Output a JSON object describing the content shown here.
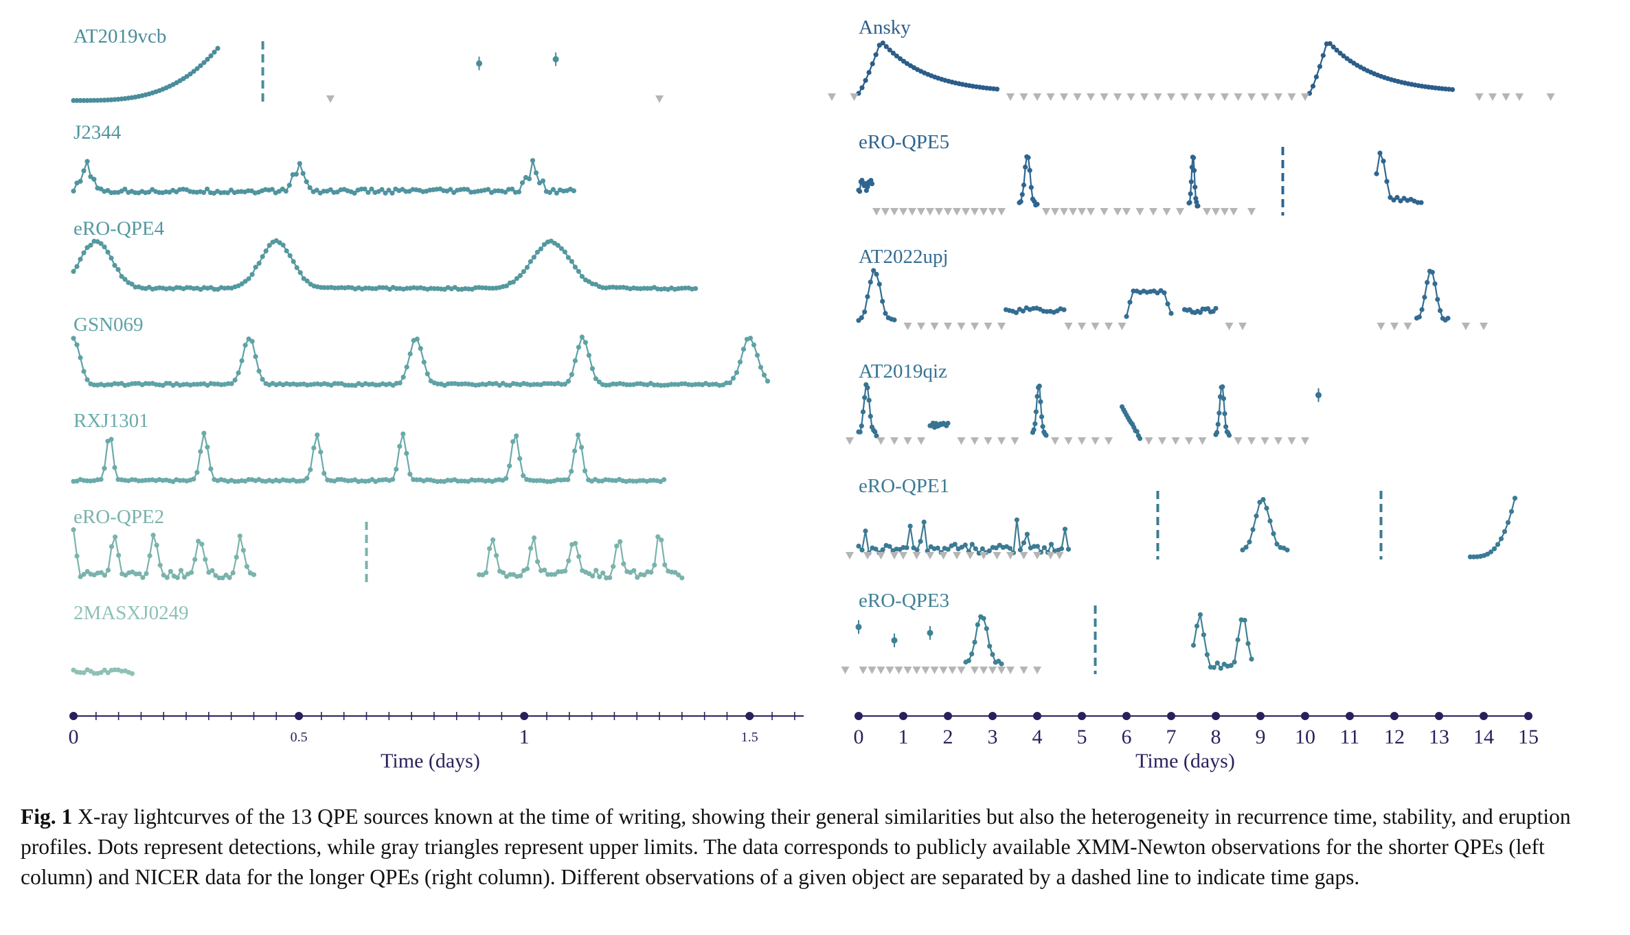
{
  "chart_data": [
    {
      "type": "line",
      "panel": "left",
      "xlabel": "Time (days)",
      "xlim": [
        0,
        1.62
      ],
      "major_ticks": [
        0,
        0.5,
        1,
        1.5
      ],
      "tick_labels": [
        "0",
        "0.5",
        "1",
        "1.5"
      ],
      "minor_tick_step": 0.05,
      "series": [
        {
          "name": "AT2019vcb",
          "color": "#4a8d9b",
          "segments": [
            {
              "start": 0.0,
              "end": 0.32,
              "model": "rise"
            }
          ],
          "isolated": [
            0.9,
            1.07
          ],
          "gaps": [
            0.42
          ],
          "upper_limits": [
            0.57,
            1.3
          ]
        },
        {
          "name": "J2344",
          "color": "#4f949f",
          "segments": [
            {
              "start": 0.0,
              "end": 1.11,
              "model": "noisy",
              "flares": [
                0.03,
                0.5,
                1.02
              ]
            }
          ],
          "gaps": [],
          "upper_limits": []
        },
        {
          "name": "eRO-QPE4",
          "color": "#54999f",
          "segments": [
            {
              "start": 0.0,
              "end": 1.38,
              "model": "peaks",
              "peaks": [
                0.05,
                0.45,
                1.06
              ],
              "widths": [
                0.05,
                0.05,
                0.06
              ]
            }
          ],
          "gaps": [],
          "upper_limits": []
        },
        {
          "name": "GSN069",
          "color": "#5ea2a6",
          "segments": [
            {
              "start": 0.0,
              "end": 1.54,
              "model": "peaks",
              "peaks": [
                0.0,
                0.39,
                0.76,
                1.13,
                1.5
              ],
              "widths": [
                0.02,
                0.02,
                0.02,
                0.02,
                0.025
              ]
            }
          ],
          "gaps": [],
          "upper_limits": []
        },
        {
          "name": "RXJ1301",
          "color": "#6aaaaa",
          "segments": [
            {
              "start": 0.0,
              "end": 1.31,
              "model": "peaks",
              "peaks": [
                0.08,
                0.29,
                0.54,
                0.73,
                0.98,
                1.12
              ],
              "widths": [
                0.01,
                0.012,
                0.012,
                0.012,
                0.012,
                0.012
              ]
            }
          ],
          "gaps": [],
          "upper_limits": []
        },
        {
          "name": "eRO-QPE2",
          "color": "#7ab3ac",
          "segments": [
            {
              "start": 0.0,
              "end": 0.4,
              "model": "spikes",
              "peaks": [
                0.0,
                0.09,
                0.18,
                0.28,
                0.37
              ]
            },
            {
              "start": 0.9,
              "end": 1.35,
              "model": "spikes",
              "peaks": [
                0.93,
                1.02,
                1.11,
                1.21,
                1.3
              ]
            }
          ],
          "gaps": [
            0.65
          ],
          "upper_limits": []
        },
        {
          "name": "2MASXJ0249",
          "color": "#8ec0b6",
          "segments": [
            {
              "start": 0.0,
              "end": 0.13,
              "model": "noisy"
            }
          ],
          "gaps": [],
          "upper_limits": []
        }
      ]
    },
    {
      "type": "line",
      "panel": "right",
      "xlabel": "Time (days)",
      "xlim": [
        0,
        15
      ],
      "major_ticks": [
        0,
        1,
        2,
        3,
        4,
        5,
        6,
        7,
        8,
        9,
        10,
        11,
        12,
        13,
        14,
        15
      ],
      "tick_labels": [
        "0",
        "1",
        "2",
        "3",
        "4",
        "5",
        "6",
        "7",
        "8",
        "9",
        "10",
        "11",
        "12",
        "13",
        "14",
        "15"
      ],
      "series": [
        {
          "name": "Ansky",
          "color": "#2b5d8a",
          "segments": [
            {
              "start": 0.0,
              "end": 3.1,
              "model": "fred",
              "peak": 0.5
            },
            {
              "start": 10.1,
              "end": 13.3,
              "model": "fred",
              "peak": 10.5
            }
          ],
          "upper_limits": [
            -0.6,
            -0.1,
            3.4,
            3.7,
            4.0,
            4.3,
            4.6,
            4.9,
            5.2,
            5.5,
            5.8,
            6.1,
            6.4,
            6.7,
            7.0,
            7.3,
            7.6,
            7.9,
            8.2,
            8.5,
            8.8,
            9.1,
            9.4,
            9.7,
            10.0,
            13.9,
            14.2,
            14.5,
            14.8,
            15.5
          ],
          "gaps": []
        },
        {
          "name": "eRO-QPE5",
          "color": "#2e6590",
          "segments": [
            {
              "start": 0.0,
              "end": 0.3,
              "model": "sparse"
            },
            {
              "start": 3.6,
              "end": 4.0,
              "model": "flare"
            },
            {
              "start": 7.4,
              "end": 7.6,
              "model": "flare"
            },
            {
              "start": 11.6,
              "end": 12.6,
              "model": "fast-rise"
            }
          ],
          "upper_limits": [
            0.4,
            0.6,
            0.8,
            1.0,
            1.2,
            1.4,
            1.6,
            1.8,
            2.0,
            2.2,
            2.4,
            2.6,
            2.8,
            3.0,
            3.2,
            4.2,
            4.4,
            4.6,
            4.8,
            5.0,
            5.2,
            5.5,
            5.8,
            6.0,
            6.3,
            6.6,
            6.9,
            7.2,
            7.8,
            8.0,
            8.2,
            8.4,
            8.8
          ],
          "gaps": [
            9.5
          ]
        },
        {
          "name": "AT2022upj",
          "color": "#336c92",
          "segments": [
            {
              "start": 0.0,
              "end": 0.8,
              "model": "flare"
            },
            {
              "start": 3.3,
              "end": 4.6,
              "model": "flat"
            },
            {
              "start": 6.0,
              "end": 7.0,
              "model": "plateau"
            },
            {
              "start": 7.3,
              "end": 8.0,
              "model": "flat"
            },
            {
              "start": 12.5,
              "end": 13.2,
              "model": "flare"
            }
          ],
          "upper_limits": [
            1.1,
            1.4,
            1.7,
            2.0,
            2.3,
            2.6,
            2.9,
            3.2,
            4.7,
            5.0,
            5.3,
            5.6,
            5.9,
            8.3,
            8.6,
            11.7,
            12.0,
            12.3,
            13.6,
            14.0
          ],
          "gaps": []
        },
        {
          "name": "AT2019qiz",
          "color": "#377393",
          "segments": [
            {
              "start": 0.0,
              "end": 0.4,
              "model": "flare"
            },
            {
              "start": 1.6,
              "end": 2.0,
              "model": "flat"
            },
            {
              "start": 3.9,
              "end": 4.2,
              "model": "flare"
            },
            {
              "start": 5.9,
              "end": 6.3,
              "model": "decay"
            },
            {
              "start": 8.0,
              "end": 8.3,
              "model": "flare"
            }
          ],
          "isolated": [
            10.3
          ],
          "upper_limits": [
            -0.2,
            0.5,
            0.8,
            1.1,
            1.4,
            2.3,
            2.6,
            2.9,
            3.2,
            3.5,
            4.4,
            4.7,
            5.0,
            5.3,
            5.6,
            6.5,
            6.8,
            7.1,
            7.4,
            7.7,
            8.5,
            8.8,
            9.1,
            9.4,
            9.7,
            10.0
          ],
          "gaps": []
        },
        {
          "name": "eRO-QPE1",
          "color": "#3b7a94",
          "segments": [
            {
              "start": 0.0,
              "end": 4.7,
              "model": "spikes"
            },
            {
              "start": 8.6,
              "end": 9.6,
              "model": "flare"
            },
            {
              "start": 13.7,
              "end": 14.7,
              "model": "rise"
            }
          ],
          "upper_limits": [
            -0.2,
            0.2,
            0.5,
            0.8,
            1.0,
            1.3,
            1.6,
            1.9,
            2.2,
            2.5,
            2.8,
            3.1,
            3.4,
            3.7,
            4.0,
            4.3,
            4.5
          ],
          "gaps": [
            6.7,
            11.7
          ]
        },
        {
          "name": "eRO-QPE3",
          "color": "#3f8195",
          "segments": [
            {
              "start": 2.4,
              "end": 3.2,
              "model": "flare"
            },
            {
              "start": 7.5,
              "end": 8.8,
              "model": "double-peak"
            }
          ],
          "isolated": [
            0.0,
            0.8,
            1.6
          ],
          "upper_limits": [
            -0.3,
            0.1,
            0.3,
            0.5,
            0.7,
            0.9,
            1.1,
            1.3,
            1.5,
            1.7,
            1.9,
            2.1,
            2.3,
            2.6,
            2.8,
            3.0,
            3.2,
            3.4,
            3.7,
            4.0
          ],
          "gaps": [
            5.3
          ]
        }
      ]
    }
  ],
  "caption": {
    "label": "Fig. 1",
    "text": " X-ray lightcurves of the 13 QPE sources known at the time of writing, showing their general similarities but also the heterogeneity in recurrence time, stability, and eruption profiles. Dots represent detections, while gray triangles represent upper limits. The data corresponds to publicly available XMM-Newton observations for the shorter QPEs (left column) and NICER data for the longer QPEs (right column). Different observations of a given object are separated by a dashed line to indicate time gaps."
  },
  "colors": {
    "axis": "#2a1f5c",
    "upper_limit": "#b5b5b5"
  }
}
